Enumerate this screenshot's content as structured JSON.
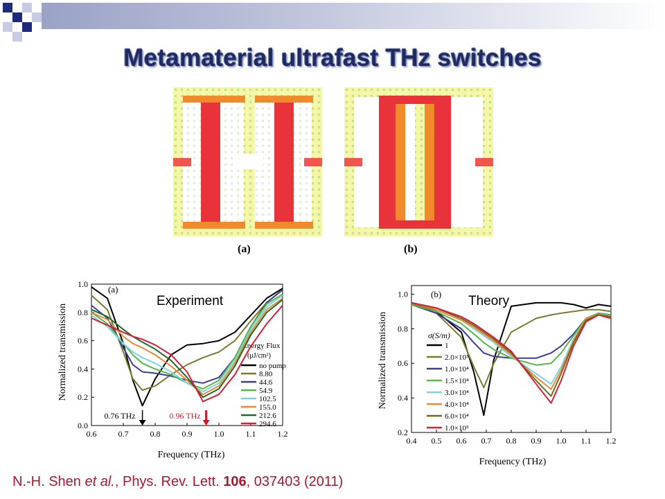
{
  "slide": {
    "title": "Metamaterial ultrafast THz switches",
    "figure_labels": [
      "(a)",
      "(b)"
    ],
    "citation": {
      "authors": "N.-H. Shen",
      "etal": "et al.",
      "journal": ", Phys. Rev. Lett. ",
      "volume": "106",
      "rest": ", 037403 (2011)"
    }
  },
  "colors": {
    "title": "#1f2a60",
    "citation": "#b2132c",
    "field_bg": "#f5f7a8",
    "current_red": "#e8333a",
    "current_orange": "#f08a2a"
  },
  "chart_data": [
    {
      "type": "line",
      "panel_tag": "(a)",
      "caption": "Experiment",
      "xlabel": "Frequency (THz)",
      "ylabel": "Normalized transmission",
      "xlim": [
        0.6,
        1.2
      ],
      "ylim": [
        0.0,
        1.0
      ],
      "xticks": [
        "0.6",
        "0.7",
        "0.8",
        "0.9",
        "1.0",
        "1.1",
        "1.2"
      ],
      "yticks": [
        "0.0",
        "0.2",
        "0.4",
        "0.6",
        "0.8",
        "1.0"
      ],
      "legend_title": "Energy Flux",
      "legend_unit": "(μJ/cm²)",
      "legend_placement": "right",
      "annotations": [
        {
          "text": "0.76 THz",
          "x": 0.76,
          "y": 0.0,
          "color": "#000000"
        },
        {
          "text": "0.96 THz",
          "x": 0.96,
          "y": 0.0,
          "color": "#d0182f"
        }
      ],
      "x": [
        0.6,
        0.65,
        0.7,
        0.73,
        0.76,
        0.8,
        0.85,
        0.9,
        0.95,
        1.0,
        1.05,
        1.1,
        1.15,
        1.2
      ],
      "series": [
        {
          "name": "no pump",
          "color": "#000000",
          "values": [
            0.98,
            0.9,
            0.58,
            0.32,
            0.14,
            0.33,
            0.5,
            0.57,
            0.58,
            0.6,
            0.66,
            0.78,
            0.9,
            0.97
          ]
        },
        {
          "name": "8.80",
          "color": "#7a7a2e",
          "values": [
            0.92,
            0.82,
            0.52,
            0.33,
            0.25,
            0.28,
            0.36,
            0.43,
            0.48,
            0.52,
            0.6,
            0.74,
            0.87,
            0.96
          ]
        },
        {
          "name": "44.6",
          "color": "#3b3b9a",
          "values": [
            0.85,
            0.76,
            0.55,
            0.43,
            0.38,
            0.37,
            0.35,
            0.32,
            0.3,
            0.34,
            0.48,
            0.7,
            0.87,
            0.96
          ]
        },
        {
          "name": "54.9",
          "color": "#52b848",
          "values": [
            0.8,
            0.72,
            0.58,
            0.5,
            0.44,
            0.4,
            0.36,
            0.3,
            0.26,
            0.32,
            0.48,
            0.7,
            0.86,
            0.93
          ]
        },
        {
          "name": "102.5",
          "color": "#7fd3e0",
          "values": [
            0.78,
            0.7,
            0.58,
            0.52,
            0.48,
            0.44,
            0.38,
            0.3,
            0.24,
            0.3,
            0.46,
            0.68,
            0.84,
            0.92
          ]
        },
        {
          "name": "155.0",
          "color": "#e88a35",
          "values": [
            0.8,
            0.75,
            0.63,
            0.58,
            0.55,
            0.5,
            0.42,
            0.32,
            0.22,
            0.28,
            0.44,
            0.66,
            0.82,
            0.9
          ]
        },
        {
          "name": "212.6",
          "color": "#1d6a2c",
          "values": [
            0.82,
            0.77,
            0.68,
            0.63,
            0.59,
            0.54,
            0.46,
            0.34,
            0.2,
            0.26,
            0.42,
            0.64,
            0.8,
            0.89
          ]
        },
        {
          "name": "294.6",
          "color": "#d81d38",
          "values": [
            0.76,
            0.71,
            0.66,
            0.63,
            0.61,
            0.57,
            0.5,
            0.38,
            0.17,
            0.22,
            0.36,
            0.56,
            0.72,
            0.85
          ]
        }
      ]
    },
    {
      "type": "line",
      "panel_tag": "(b)",
      "caption": "Theory",
      "xlabel": "Frequency (THz)",
      "ylabel": "Normalized transmission",
      "xlim": [
        0.4,
        1.2
      ],
      "ylim": [
        0.2,
        1.05
      ],
      "xticks": [
        "0.4",
        "0.5",
        "0.6",
        "0.7",
        "0.8",
        "0.9",
        "1.0",
        "1.1",
        "1.2"
      ],
      "yticks": [
        "0.2",
        "0.4",
        "0.6",
        "0.8",
        "1.0"
      ],
      "legend_title": "σ(S/m)",
      "legend_placement": "left",
      "x": [
        0.4,
        0.5,
        0.6,
        0.65,
        0.69,
        0.73,
        0.8,
        0.9,
        0.96,
        1.0,
        1.05,
        1.1,
        1.15,
        1.2
      ],
      "series": [
        {
          "name": "1",
          "color": "#000000",
          "values": [
            0.95,
            0.9,
            0.78,
            0.55,
            0.3,
            0.62,
            0.93,
            0.95,
            0.95,
            0.95,
            0.94,
            0.92,
            0.94,
            0.93
          ]
        },
        {
          "name": "2.0×10³",
          "color": "#7a7a2e",
          "values": [
            0.94,
            0.89,
            0.75,
            0.58,
            0.46,
            0.6,
            0.78,
            0.86,
            0.88,
            0.89,
            0.9,
            0.91,
            0.91,
            0.9
          ]
        },
        {
          "name": "1.0×10⁴",
          "color": "#3b3b9a",
          "values": [
            0.94,
            0.89,
            0.8,
            0.72,
            0.66,
            0.64,
            0.63,
            0.63,
            0.66,
            0.7,
            0.77,
            0.86,
            0.89,
            0.88
          ]
        },
        {
          "name": "1.5×10⁴",
          "color": "#52b848",
          "values": [
            0.94,
            0.9,
            0.83,
            0.77,
            0.72,
            0.68,
            0.63,
            0.59,
            0.6,
            0.66,
            0.76,
            0.86,
            0.89,
            0.88
          ]
        },
        {
          "name": "3.0×10⁴",
          "color": "#7fd3e0",
          "values": [
            0.95,
            0.91,
            0.85,
            0.8,
            0.76,
            0.72,
            0.64,
            0.54,
            0.48,
            0.58,
            0.74,
            0.86,
            0.88,
            0.87
          ]
        },
        {
          "name": "4.0×10⁴",
          "color": "#e88a35",
          "values": [
            0.95,
            0.91,
            0.85,
            0.81,
            0.77,
            0.73,
            0.65,
            0.52,
            0.45,
            0.56,
            0.73,
            0.86,
            0.88,
            0.87
          ]
        },
        {
          "name": "6.0×10⁴",
          "color": "#6b6b20",
          "values": [
            0.95,
            0.92,
            0.86,
            0.82,
            0.78,
            0.74,
            0.66,
            0.5,
            0.41,
            0.54,
            0.72,
            0.85,
            0.88,
            0.87
          ]
        },
        {
          "name": "1.0×10⁵",
          "color": "#d81d38",
          "values": [
            0.95,
            0.92,
            0.87,
            0.83,
            0.79,
            0.75,
            0.67,
            0.48,
            0.37,
            0.5,
            0.7,
            0.84,
            0.88,
            0.86
          ]
        }
      ]
    }
  ]
}
